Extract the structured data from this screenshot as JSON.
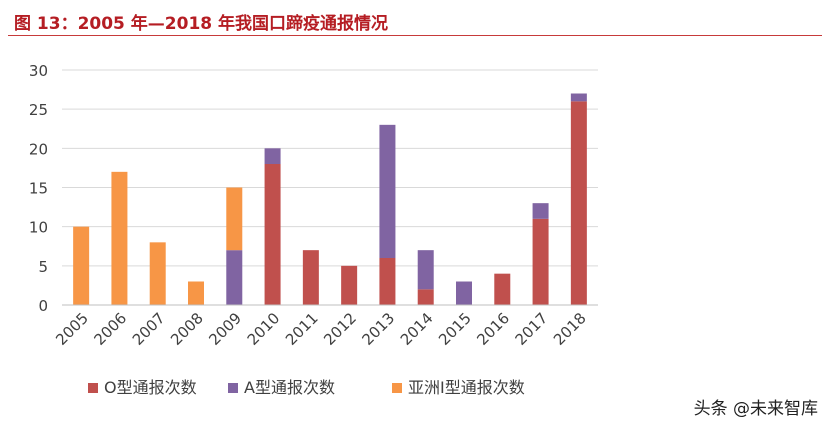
{
  "title": "图 13：2005 年—2018 年我国口蹄疫通报情况",
  "watermark": "头条 @未来智库",
  "chart_data": {
    "type": "bar",
    "stacked": true,
    "title": "",
    "xlabel": "",
    "ylabel": "",
    "ylim": [
      0,
      30
    ],
    "yticks": [
      0,
      5,
      10,
      15,
      20,
      25,
      30
    ],
    "grid": true,
    "legend_position": "bottom",
    "categories": [
      "2005",
      "2006",
      "2007",
      "2008",
      "2009",
      "2010",
      "2011",
      "2012",
      "2013",
      "2014",
      "2015",
      "2016",
      "2017",
      "2018"
    ],
    "series": [
      {
        "name": "O型通报次数",
        "color": "#c0504d",
        "values": [
          0,
          0,
          0,
          0,
          0,
          18,
          7,
          5,
          6,
          2,
          0,
          4,
          11,
          26
        ]
      },
      {
        "name": "A型通报次数",
        "color": "#8064a2",
        "values": [
          0,
          0,
          0,
          0,
          7,
          2,
          0,
          0,
          17,
          5,
          3,
          0,
          2,
          1
        ]
      },
      {
        "name": "亚洲I型通报次数",
        "color": "#f79646",
        "values": [
          10,
          17,
          8,
          3,
          8,
          0,
          0,
          0,
          0,
          0,
          0,
          0,
          0,
          0
        ]
      }
    ]
  }
}
